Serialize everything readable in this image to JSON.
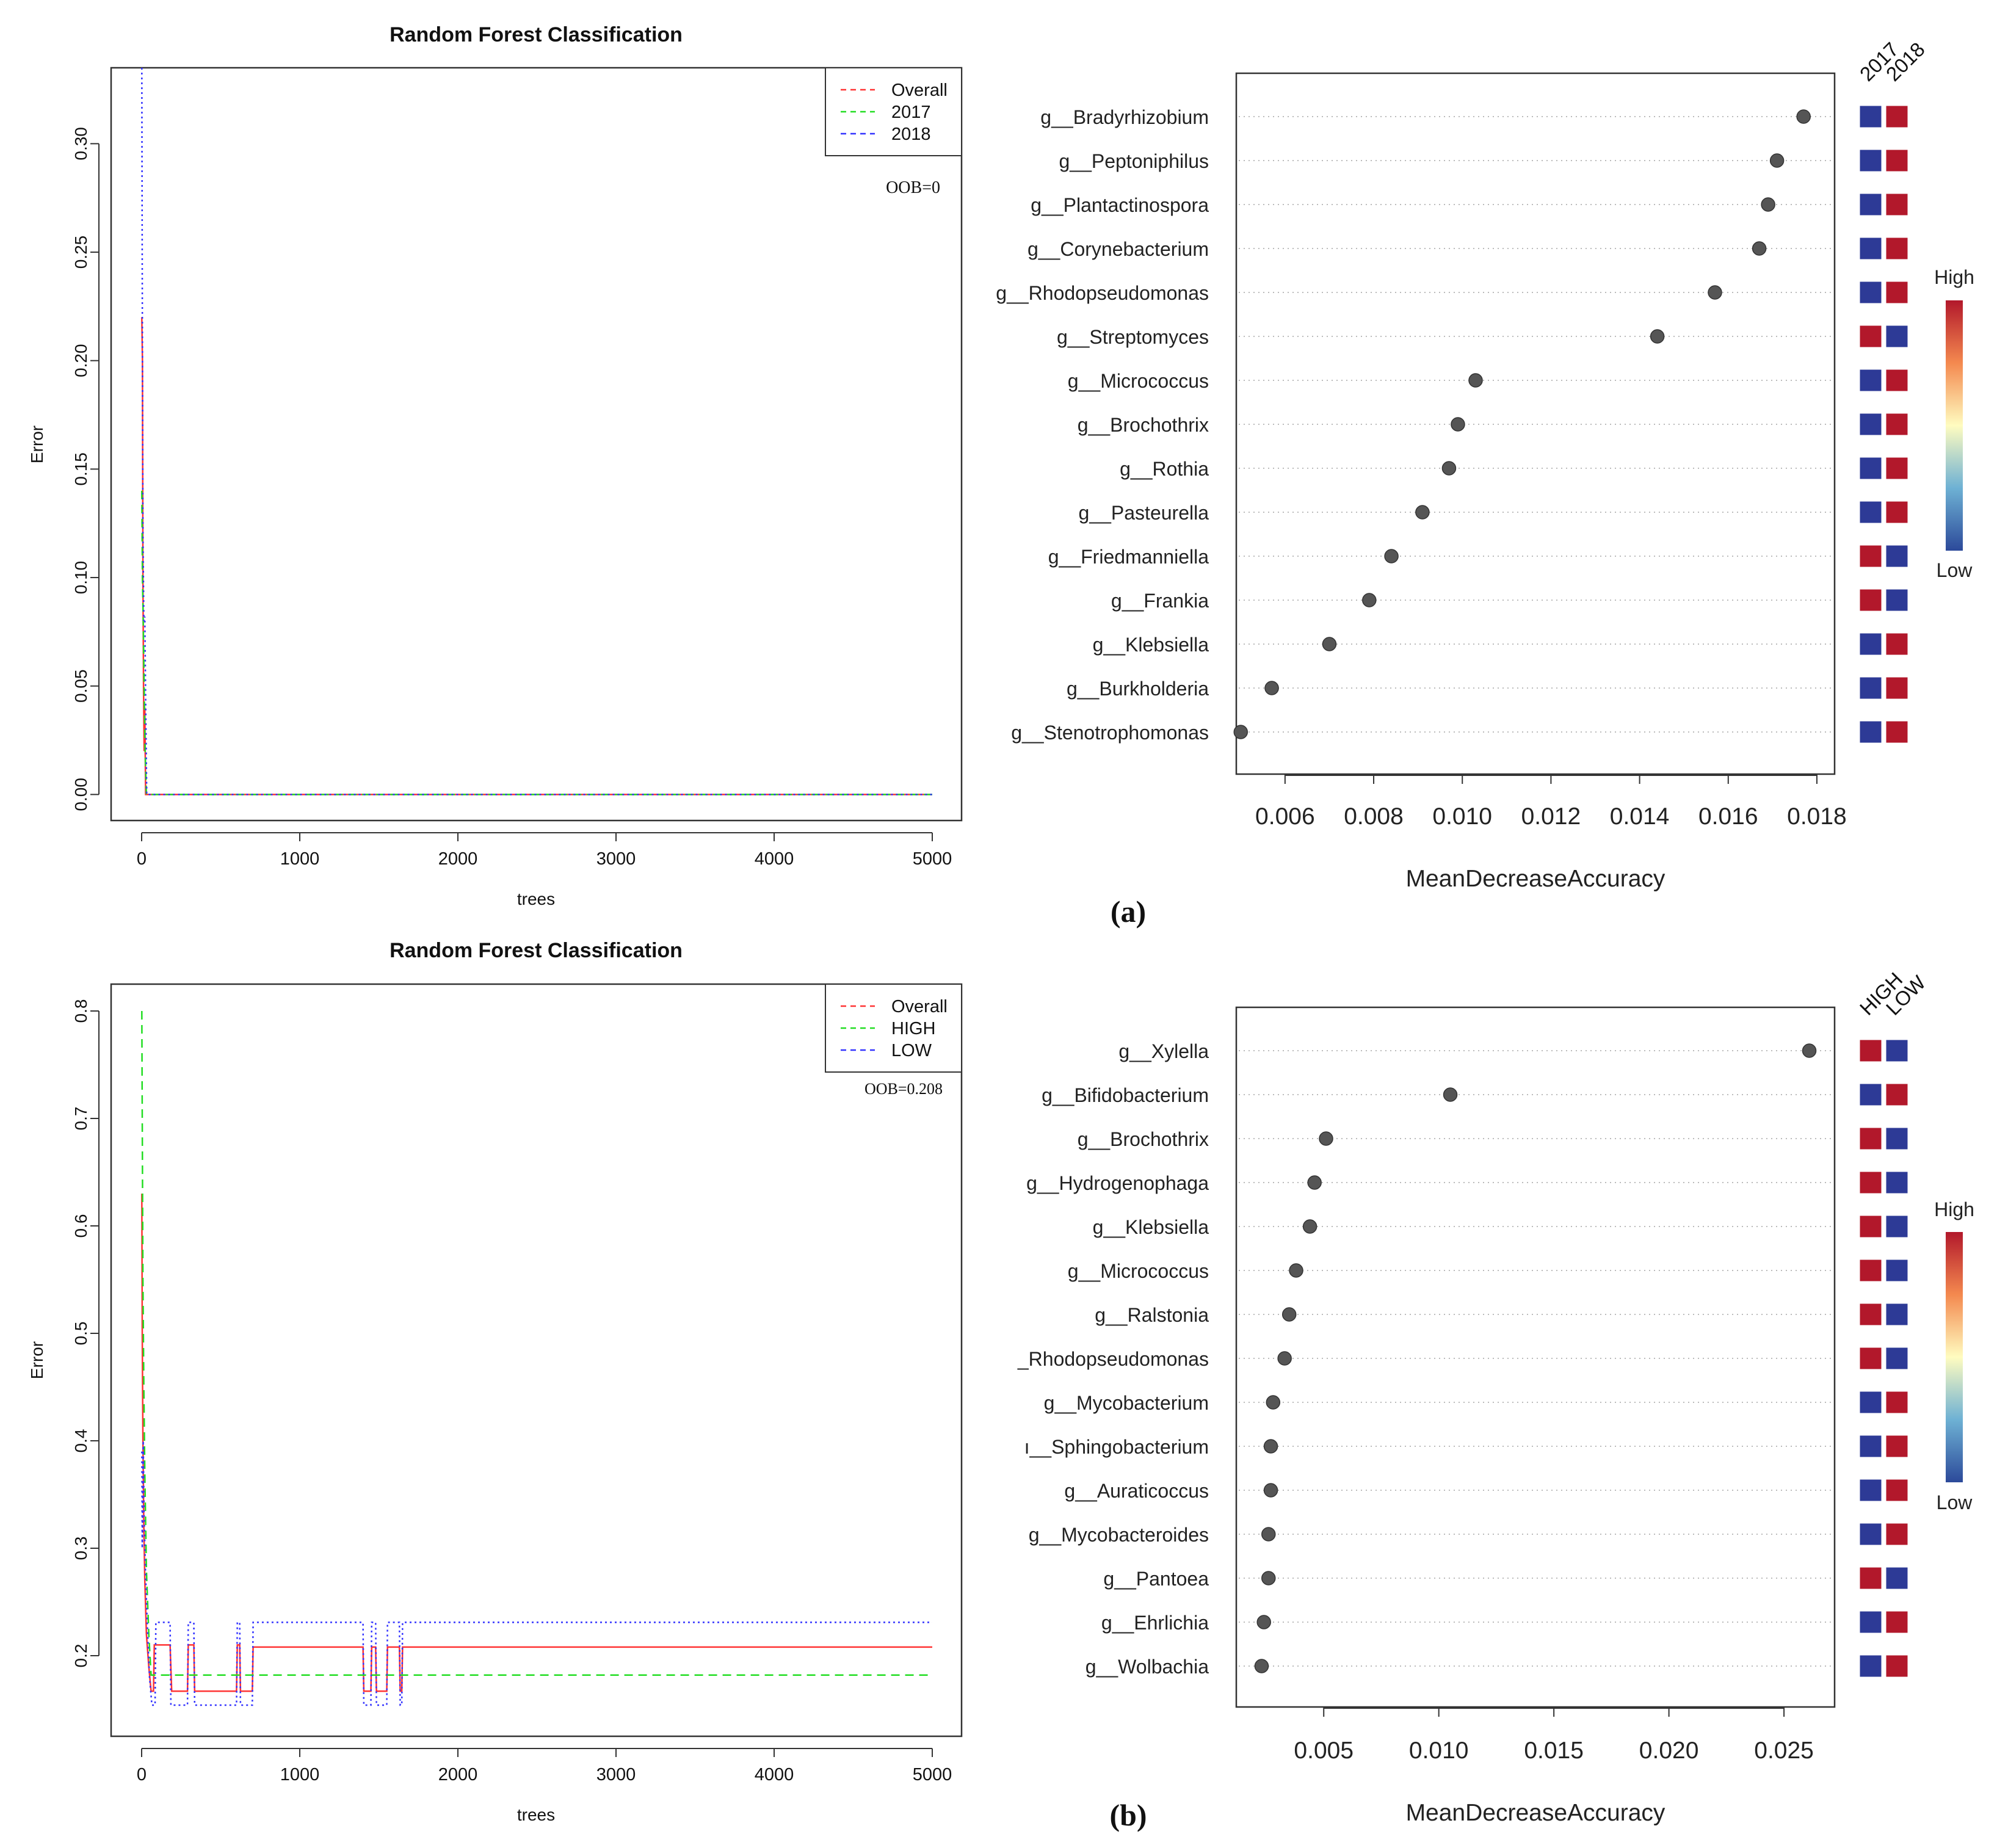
{
  "figure": {
    "panel_a_caption": "(a)",
    "panel_b_caption": "(b)",
    "colors": {
      "overall": "#ff3333",
      "class1": "#22dd22",
      "class2": "#3333ff",
      "dot": "#555555",
      "high": "#b2182b",
      "low": "#2d3a96",
      "grid": "#bbbbbb"
    }
  },
  "chart_data": [
    {
      "id": "a-error",
      "type": "line",
      "title": "Random Forest Classification",
      "xlabel": "trees",
      "ylabel": "Error",
      "xlim": [
        0,
        5000
      ],
      "ylim": [
        -0.012,
        0.335
      ],
      "xticks": [
        "0",
        "1000",
        "2000",
        "3000",
        "4000",
        "5000"
      ],
      "yticks": [
        "0.00",
        "0.05",
        "0.10",
        "0.15",
        "0.20",
        "0.25",
        "0.30"
      ],
      "ytick_values": [
        0,
        0.05,
        0.1,
        0.15,
        0.2,
        0.25,
        0.3
      ],
      "xtick_values": [
        0,
        1000,
        2000,
        3000,
        4000,
        5000
      ],
      "legend": [
        "Overall",
        "2017",
        "2018"
      ],
      "legend_placement": "top-right",
      "annotation": "OOB=0",
      "series": [
        {
          "name": "Overall",
          "points": [
            [
              1,
              0.22
            ],
            [
              5,
              0.2
            ],
            [
              8,
              0.1
            ],
            [
              12,
              0.05
            ],
            [
              16,
              0.02
            ],
            [
              20,
              0.04
            ],
            [
              25,
              0
            ],
            [
              5000,
              0
            ]
          ]
        },
        {
          "name": "2017",
          "points": [
            [
              1,
              0.14
            ],
            [
              5,
              0.1
            ],
            [
              10,
              0.08
            ],
            [
              16,
              0.05
            ],
            [
              22,
              0.02
            ],
            [
              30,
              0
            ],
            [
              5000,
              0
            ]
          ]
        },
        {
          "name": "2018",
          "points": [
            [
              1,
              0.335
            ],
            [
              4,
              0.24
            ],
            [
              8,
              0.12
            ],
            [
              14,
              0.08
            ],
            [
              20,
              0.082
            ],
            [
              26,
              0.04
            ],
            [
              32,
              0
            ],
            [
              5000,
              0
            ]
          ]
        }
      ]
    },
    {
      "id": "a-importance",
      "type": "scatter",
      "xlabel": "MeanDecreaseAccuracy",
      "xlim": [
        0.0049,
        0.0184
      ],
      "xticks": [
        "0.006",
        "0.008",
        "0.010",
        "0.012",
        "0.014",
        "0.016",
        "0.018"
      ],
      "xtick_values": [
        0.006,
        0.008,
        0.01,
        0.012,
        0.014,
        0.016,
        0.018
      ],
      "heat_columns": [
        "2017",
        "2018"
      ],
      "color_legend": {
        "high": "High",
        "low": "Low"
      },
      "rows": [
        {
          "label": "g__Bradyrhizobium",
          "value": 0.0177,
          "heat": [
            "L",
            "H"
          ]
        },
        {
          "label": "g__Peptoniphilus",
          "value": 0.0171,
          "heat": [
            "L",
            "H"
          ]
        },
        {
          "label": "g__Plantactinospora",
          "value": 0.0169,
          "heat": [
            "L",
            "H"
          ]
        },
        {
          "label": "g__Corynebacterium",
          "value": 0.0167,
          "heat": [
            "L",
            "H"
          ]
        },
        {
          "label": "g__Rhodopseudomonas",
          "value": 0.0157,
          "heat": [
            "L",
            "H"
          ]
        },
        {
          "label": "g__Streptomyces",
          "value": 0.0144,
          "heat": [
            "H",
            "L"
          ]
        },
        {
          "label": "g__Micrococcus",
          "value": 0.0103,
          "heat": [
            "L",
            "H"
          ]
        },
        {
          "label": "g__Brochothrix",
          "value": 0.0099,
          "heat": [
            "L",
            "H"
          ]
        },
        {
          "label": "g__Rothia",
          "value": 0.0097,
          "heat": [
            "L",
            "H"
          ]
        },
        {
          "label": "g__Pasteurella",
          "value": 0.0091,
          "heat": [
            "L",
            "H"
          ]
        },
        {
          "label": "g__Friedmanniella",
          "value": 0.0084,
          "heat": [
            "H",
            "L"
          ]
        },
        {
          "label": "g__Frankia",
          "value": 0.0079,
          "heat": [
            "H",
            "L"
          ]
        },
        {
          "label": "g__Klebsiella",
          "value": 0.007,
          "heat": [
            "L",
            "H"
          ]
        },
        {
          "label": "g__Burkholderia",
          "value": 0.0057,
          "heat": [
            "L",
            "H"
          ]
        },
        {
          "label": "g__Stenotrophomonas",
          "value": 0.005,
          "heat": [
            "L",
            "H"
          ]
        }
      ]
    },
    {
      "id": "b-error",
      "type": "line",
      "title": "Random Forest Classification",
      "xlabel": "trees",
      "ylabel": "Error",
      "xlim": [
        0,
        5000
      ],
      "ylim": [
        0.125,
        0.825
      ],
      "xticks": [
        "0",
        "1000",
        "2000",
        "3000",
        "4000",
        "5000"
      ],
      "yticks": [
        "0.2",
        "0.3",
        "0.4",
        "0.5",
        "0.6",
        "0.7",
        "0.8"
      ],
      "ytick_values": [
        0.2,
        0.3,
        0.4,
        0.5,
        0.6,
        0.7,
        0.8
      ],
      "xtick_values": [
        0,
        1000,
        2000,
        3000,
        4000,
        5000
      ],
      "legend": [
        "Overall",
        "HIGH",
        "LOW"
      ],
      "legend_placement": "top-right",
      "annotation": "OOB=0.208",
      "series": [
        {
          "name": "Overall",
          "points": [
            [
              1,
              0.63
            ],
            [
              4,
              0.5
            ],
            [
              8,
              0.4
            ],
            [
              14,
              0.32
            ],
            [
              20,
              0.27
            ],
            [
              30,
              0.22
            ],
            [
              45,
              0.19
            ],
            [
              60,
              0.167
            ],
            [
              75,
              0.167
            ],
            [
              80,
              0.21
            ],
            [
              180,
              0.21
            ],
            [
              190,
              0.167
            ],
            [
              290,
              0.167
            ],
            [
              295,
              0.21
            ],
            [
              330,
              0.21
            ],
            [
              335,
              0.167
            ],
            [
              600,
              0.167
            ],
            [
              605,
              0.21
            ],
            [
              620,
              0.21
            ],
            [
              625,
              0.167
            ],
            [
              700,
              0.167
            ],
            [
              705,
              0.208
            ],
            [
              1400,
              0.208
            ],
            [
              1405,
              0.167
            ],
            [
              1450,
              0.167
            ],
            [
              1455,
              0.208
            ],
            [
              1480,
              0.208
            ],
            [
              1485,
              0.167
            ],
            [
              1550,
              0.167
            ],
            [
              1555,
              0.208
            ],
            [
              1630,
              0.208
            ],
            [
              1635,
              0.167
            ],
            [
              1645,
              0.167
            ],
            [
              1650,
              0.208
            ],
            [
              5000,
              0.208
            ]
          ]
        },
        {
          "name": "HIGH",
          "points": [
            [
              1,
              0.8
            ],
            [
              4,
              0.7
            ],
            [
              8,
              0.55
            ],
            [
              14,
              0.45
            ],
            [
              20,
              0.37
            ],
            [
              30,
              0.28
            ],
            [
              45,
              0.22
            ],
            [
              60,
              0.182
            ],
            [
              5000,
              0.182
            ]
          ]
        },
        {
          "name": "LOW",
          "points": [
            [
              1,
              0.39
            ],
            [
              4,
              0.3
            ],
            [
              10,
              0.4
            ],
            [
              16,
              0.33
            ],
            [
              24,
              0.28
            ],
            [
              35,
              0.23
            ],
            [
              50,
              0.18
            ],
            [
              65,
              0.154
            ],
            [
              85,
              0.154
            ],
            [
              90,
              0.231
            ],
            [
              180,
              0.231
            ],
            [
              185,
              0.154
            ],
            [
              290,
              0.154
            ],
            [
              295,
              0.231
            ],
            [
              330,
              0.231
            ],
            [
              335,
              0.154
            ],
            [
              600,
              0.154
            ],
            [
              605,
              0.231
            ],
            [
              620,
              0.231
            ],
            [
              625,
              0.154
            ],
            [
              700,
              0.154
            ],
            [
              705,
              0.231
            ],
            [
              1400,
              0.231
            ],
            [
              1405,
              0.154
            ],
            [
              1450,
              0.154
            ],
            [
              1455,
              0.231
            ],
            [
              1480,
              0.231
            ],
            [
              1485,
              0.154
            ],
            [
              1550,
              0.154
            ],
            [
              1555,
              0.231
            ],
            [
              1630,
              0.231
            ],
            [
              1635,
              0.154
            ],
            [
              1645,
              0.154
            ],
            [
              1650,
              0.231
            ],
            [
              5000,
              0.231
            ]
          ]
        }
      ]
    },
    {
      "id": "b-importance",
      "type": "scatter",
      "xlabel": "MeanDecreaseAccuracy",
      "xlim": [
        0.0012,
        0.0272
      ],
      "xticks": [
        "0.005",
        "0.010",
        "0.015",
        "0.020",
        "0.025"
      ],
      "xtick_values": [
        0.005,
        0.01,
        0.015,
        0.02,
        0.025
      ],
      "heat_columns": [
        "HIGH",
        "LOW"
      ],
      "color_legend": {
        "high": "High",
        "low": "Low"
      },
      "rows": [
        {
          "label": "g__Xylella",
          "value": 0.0261,
          "heat": [
            "H",
            "L"
          ]
        },
        {
          "label": "g__Bifidobacterium",
          "value": 0.0105,
          "heat": [
            "L",
            "H"
          ]
        },
        {
          "label": "g__Brochothrix",
          "value": 0.0051,
          "heat": [
            "H",
            "L"
          ]
        },
        {
          "label": "g__Hydrogenophaga",
          "value": 0.0046,
          "heat": [
            "H",
            "L"
          ]
        },
        {
          "label": "g__Klebsiella",
          "value": 0.0044,
          "heat": [
            "H",
            "L"
          ]
        },
        {
          "label": "g__Micrococcus",
          "value": 0.0038,
          "heat": [
            "H",
            "L"
          ]
        },
        {
          "label": "g__Ralstonia",
          "value": 0.0035,
          "heat": [
            "H",
            "L"
          ]
        },
        {
          "label": "_Rhodopseudomonas",
          "value": 0.0033,
          "heat": [
            "H",
            "L"
          ]
        },
        {
          "label": "g__Mycobacterium",
          "value": 0.0028,
          "heat": [
            "L",
            "H"
          ]
        },
        {
          "label": "ı__Sphingobacterium",
          "value": 0.0027,
          "heat": [
            "L",
            "H"
          ]
        },
        {
          "label": "g__Auraticoccus",
          "value": 0.0027,
          "heat": [
            "L",
            "H"
          ]
        },
        {
          "label": "g__Mycobacteroides",
          "value": 0.0026,
          "heat": [
            "L",
            "H"
          ]
        },
        {
          "label": "g__Pantoea",
          "value": 0.0026,
          "heat": [
            "H",
            "L"
          ]
        },
        {
          "label": "g__Ehrlichia",
          "value": 0.0024,
          "heat": [
            "L",
            "H"
          ]
        },
        {
          "label": "g__Wolbachia",
          "value": 0.0023,
          "heat": [
            "L",
            "H"
          ]
        }
      ]
    }
  ]
}
